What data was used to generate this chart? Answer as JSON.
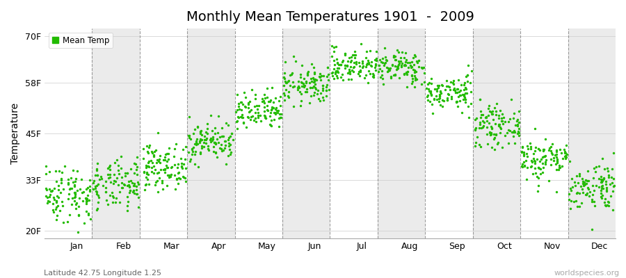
{
  "title": "Monthly Mean Temperatures 1901  -  2009",
  "ylabel": "Temperature",
  "subtitle": "Latitude 42.75 Longitude 1.25",
  "watermark": "worldspecies.org",
  "yticks": [
    20,
    33,
    45,
    58,
    70
  ],
  "ytick_labels": [
    "20F",
    "33F",
    "45F",
    "58F",
    "70F"
  ],
  "months": [
    "Jan",
    "Feb",
    "Mar",
    "Apr",
    "May",
    "Jun",
    "Jul",
    "Aug",
    "Sep",
    "Oct",
    "Nov",
    "Dec"
  ],
  "mean_temps_F": {
    "Jan": 29.5,
    "Feb": 31.5,
    "Mar": 36.5,
    "Apr": 43.0,
    "May": 50.5,
    "Jun": 57.5,
    "Jul": 62.5,
    "Aug": 62.0,
    "Sep": 55.5,
    "Oct": 47.0,
    "Nov": 38.5,
    "Dec": 31.5
  },
  "std_temps_F": {
    "Jan": 3.8,
    "Feb": 3.2,
    "Mar": 2.8,
    "Apr": 2.5,
    "May": 2.5,
    "Jun": 2.5,
    "Jul": 2.2,
    "Aug": 2.2,
    "Sep": 2.2,
    "Oct": 2.5,
    "Nov": 2.8,
    "Dec": 3.2
  },
  "n_years": 109,
  "dot_color": "#22bb00",
  "dot_size": 6,
  "background_color": "#ffffff",
  "alt_band_color": "#ebebeb",
  "ylim": [
    18,
    72
  ],
  "seed": 42,
  "legend_label": "Mean Temp",
  "legend_marker_color": "#22bb00",
  "title_fontsize": 14,
  "axis_fontsize": 9
}
